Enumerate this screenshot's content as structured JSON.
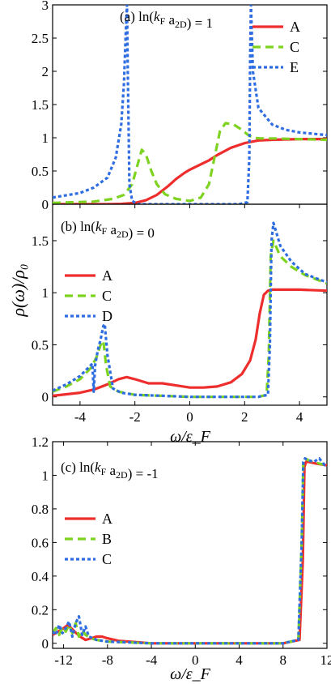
{
  "figure": {
    "ylabel": "ρ(ω)/ρ₀",
    "xlabel_b": "ω/ε_F",
    "xlabel_c": "ω/ε_F"
  },
  "chart_data": [
    {
      "type": "line",
      "panel": "a",
      "annotation": "(a) ln(k_F a_2D) = 1",
      "xlim": [
        -5,
        5
      ],
      "ylim": [
        0,
        3
      ],
      "yticks": [
        "0",
        "0.5",
        "1",
        "1.5",
        "2",
        "2.5",
        "3"
      ],
      "xticks": [],
      "legend": "top-right",
      "series": [
        {
          "name": "A",
          "color": "#ee2d2d",
          "dash": "solid",
          "x": [
            -5,
            -3,
            -2.5,
            -2,
            -1.6,
            -1.2,
            -0.8,
            -0.5,
            -0.2,
            0,
            0.3,
            0.7,
            1,
            1.5,
            2,
            2.5,
            3,
            4,
            5
          ],
          "y": [
            0,
            0,
            0.005,
            0.02,
            0.06,
            0.14,
            0.27,
            0.38,
            0.47,
            0.52,
            0.58,
            0.66,
            0.74,
            0.85,
            0.92,
            0.96,
            0.97,
            0.98,
            0.98
          ]
        },
        {
          "name": "C",
          "color": "#7ed321",
          "dash": "dashed",
          "x": [
            -5,
            -3.5,
            -2.8,
            -2.4,
            -2.1,
            -1.9,
            -1.75,
            -1.6,
            -1.4,
            -1.2,
            -0.9,
            -0.5,
            0,
            0.4,
            0.7,
            0.9,
            1.1,
            1.3,
            1.6,
            1.9,
            2.1,
            2.3,
            2.6,
            3,
            4,
            5
          ],
          "y": [
            0.02,
            0.04,
            0.08,
            0.14,
            0.3,
            0.6,
            0.82,
            0.75,
            0.5,
            0.3,
            0.15,
            0.08,
            0.05,
            0.1,
            0.3,
            0.7,
            1.1,
            1.22,
            1.2,
            1.12,
            1.05,
            1.0,
            0.99,
            0.99,
            0.98,
            0.97
          ]
        },
        {
          "name": "E",
          "color": "#2f6ee0",
          "dash": "dotted",
          "x": [
            -5,
            -4,
            -3.5,
            -3,
            -2.7,
            -2.5,
            -2.4,
            -2.33,
            -2.29,
            -2.26,
            -2.2,
            -2.1,
            -1.9,
            -1.5,
            -1,
            0,
            1,
            1.8,
            2.1,
            2.17,
            2.2,
            2.23,
            2.3,
            2.5,
            3,
            3.5,
            4,
            5
          ],
          "y": [
            0.1,
            0.17,
            0.25,
            0.4,
            0.7,
            1.2,
            1.8,
            2.6,
            3.0,
            2.0,
            0.3,
            0.05,
            0.0,
            0.0,
            0.0,
            0.0,
            0.0,
            0.0,
            0.03,
            0.7,
            2.2,
            3.0,
            2.0,
            1.45,
            1.2,
            1.12,
            1.08,
            1.04
          ]
        }
      ]
    },
    {
      "type": "line",
      "panel": "b",
      "annotation": "(b) ln(k_F a_2D) = 0",
      "xlim": [
        -5,
        5
      ],
      "ylim": [
        -0.08,
        1.85
      ],
      "yticks": [
        "0",
        "0.5",
        "1",
        "1.5"
      ],
      "xticks": [
        "-4",
        "-2",
        "0",
        "2",
        "4"
      ],
      "legend": "left",
      "series": [
        {
          "name": "A",
          "color": "#ee2d2d",
          "dash": "solid",
          "x": [
            -5,
            -4,
            -3.5,
            -3,
            -2.6,
            -2.3,
            -2,
            -1.5,
            -1,
            -0.5,
            0,
            0.5,
            1,
            1.5,
            1.9,
            2.2,
            2.4,
            2.55,
            2.7,
            2.85,
            3.0,
            3.3,
            4,
            5
          ],
          "y": [
            0.01,
            0.04,
            0.07,
            0.12,
            0.17,
            0.19,
            0.17,
            0.13,
            0.13,
            0.11,
            0.09,
            0.09,
            0.1,
            0.14,
            0.22,
            0.35,
            0.55,
            0.8,
            0.98,
            1.02,
            1.03,
            1.03,
            1.03,
            1.02
          ]
        },
        {
          "name": "C",
          "color": "#7ed321",
          "dash": "dashed",
          "x": [
            -5,
            -4.5,
            -4,
            -3.6,
            -3.4,
            -3.25,
            -3.15,
            -3.05,
            -2.9,
            -2.6,
            -2,
            -1,
            0,
            1.5,
            2.5,
            2.8,
            2.88,
            2.95,
            3.05,
            3.3,
            3.7,
            4.2,
            5
          ],
          "y": [
            0.05,
            0.1,
            0.17,
            0.28,
            0.38,
            0.5,
            0.54,
            0.3,
            0.1,
            0.05,
            0.02,
            0.01,
            0.0,
            0.0,
            0.0,
            0.02,
            0.4,
            1.35,
            1.5,
            1.35,
            1.25,
            1.17,
            1.09
          ]
        },
        {
          "name": "D",
          "color": "#2f6ee0",
          "dash": "dotted",
          "x": [
            -5,
            -4.5,
            -4,
            -3.7,
            -3.55,
            -3.5,
            -3.45,
            -3.35,
            -3.25,
            -3.15,
            -3.1,
            -3.0,
            -2.8,
            -2.5,
            -2,
            -1,
            0,
            1.5,
            2.5,
            2.85,
            2.92,
            2.98,
            3.05,
            3.3,
            3.7,
            4.2,
            5
          ],
          "y": [
            0.06,
            0.12,
            0.2,
            0.28,
            0.32,
            0.05,
            0.3,
            0.45,
            0.55,
            0.68,
            0.7,
            0.4,
            0.08,
            0.04,
            0.02,
            0.01,
            0.0,
            0.0,
            0.0,
            0.02,
            0.5,
            1.5,
            1.67,
            1.45,
            1.3,
            1.18,
            1.1
          ]
        }
      ]
    },
    {
      "type": "line",
      "panel": "c",
      "annotation": "(c) ln(k_F a_2D) = -1",
      "xlim": [
        -13,
        12
      ],
      "ylim": [
        -0.03,
        1.2
      ],
      "yticks": [
        "0",
        "0.2",
        "0.4",
        "0.6",
        "0.8",
        "1",
        "1.2"
      ],
      "xticks": [
        "-12",
        "-8",
        "-4",
        "0",
        "4",
        "8",
        "12"
      ],
      "legend": "left",
      "series": [
        {
          "name": "A",
          "color": "#ee2d2d",
          "dash": "solid",
          "x": [
            -13,
            -12.5,
            -12,
            -11.6,
            -11,
            -10.5,
            -10,
            -9.5,
            -9,
            -8.5,
            -8,
            -7,
            -6,
            -5,
            -4,
            -2,
            0,
            4,
            8,
            9.5,
            9.8,
            9.95,
            10.1,
            10.3,
            11,
            12
          ],
          "y": [
            0.05,
            0.07,
            0.09,
            0.11,
            0.07,
            0.04,
            0.02,
            0.03,
            0.04,
            0.04,
            0.03,
            0.015,
            0.01,
            0.005,
            0.0,
            0.0,
            0.0,
            0.0,
            0.0,
            0.02,
            0.5,
            1.05,
            1.08,
            1.08,
            1.07,
            1.06
          ]
        },
        {
          "name": "B",
          "color": "#7ed321",
          "dash": "dashed",
          "x": [
            -13,
            -12.7,
            -12.4,
            -12.1,
            -11.8,
            -11.5,
            -11.2,
            -10.9,
            -10.6,
            -10.3,
            -10,
            -9.5,
            -9,
            -8,
            -6,
            -4,
            0,
            4,
            8,
            9.4,
            9.7,
            9.85,
            10.0,
            10.3,
            10.8,
            11.3,
            12
          ],
          "y": [
            0.06,
            0.09,
            0.05,
            0.1,
            0.07,
            0.11,
            0.06,
            0.12,
            0.04,
            0.08,
            0.05,
            0.03,
            0.02,
            0.01,
            0.005,
            0.0,
            0.0,
            0.0,
            0.0,
            0.02,
            0.6,
            1.08,
            1.1,
            1.09,
            1.08,
            1.07,
            1.06
          ]
        },
        {
          "name": "C",
          "color": "#2f6ee0",
          "dash": "dotted",
          "x": [
            -13,
            -12.7,
            -12.4,
            -12.1,
            -11.8,
            -11.5,
            -11.2,
            -10.9,
            -10.6,
            -10.3,
            -10,
            -9.7,
            -9.3,
            -9,
            -8,
            -6,
            -4,
            0,
            4,
            8,
            9.4,
            9.7,
            9.85,
            10.0,
            10.3,
            10.8,
            11.3,
            11.8,
            12
          ],
          "y": [
            0.07,
            0.05,
            0.11,
            0.06,
            0.09,
            0.13,
            0.04,
            0.12,
            0.16,
            0.05,
            0.1,
            0.04,
            0.03,
            0.02,
            0.01,
            0.005,
            0.0,
            0.0,
            0.0,
            0.0,
            0.02,
            0.6,
            1.08,
            1.1,
            1.09,
            1.08,
            1.1,
            1.06,
            1.07
          ]
        }
      ]
    }
  ]
}
